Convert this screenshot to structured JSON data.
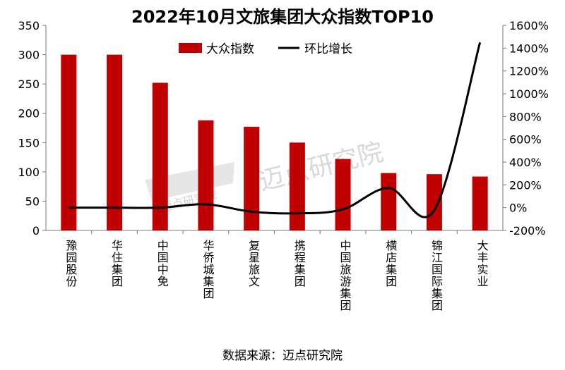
{
  "chart_data": {
    "type": "bar",
    "title": "2022年10月文旅集团大众指数TOP10",
    "categories": [
      "豫园股份",
      "华住集团",
      "中国中免",
      "华侨城集团",
      "复星旅文",
      "携程集团",
      "中国旅游集团",
      "横店集团",
      "锦江国际集团",
      "大丰实业"
    ],
    "series": [
      {
        "name": "大众指数",
        "type": "bar",
        "axis": "left",
        "color": "#C00000",
        "values": [
          300,
          300,
          252,
          188,
          177,
          150,
          122,
          98,
          96,
          92
        ]
      },
      {
        "name": "环比增长",
        "type": "line",
        "smooth": true,
        "axis": "right",
        "color": "#000000",
        "values": [
          0,
          0,
          0,
          30,
          -35,
          -50,
          -15,
          173,
          -22,
          1450
        ]
      }
    ],
    "left_axis": {
      "range": [
        0,
        350
      ],
      "ticks": [
        "0",
        "50",
        "100",
        "150",
        "200",
        "250",
        "300",
        "350"
      ]
    },
    "right_axis": {
      "range": [
        -200,
        1600
      ],
      "ticks": [
        "-200%",
        "0%",
        "200%",
        "400%",
        "600%",
        "800%",
        "1000%",
        "1200%",
        "1400%",
        "1600%"
      ]
    },
    "legend": "top-center",
    "grid": false
  },
  "source": "数据来源：迈点研究院",
  "watermark": "迈点研究院"
}
